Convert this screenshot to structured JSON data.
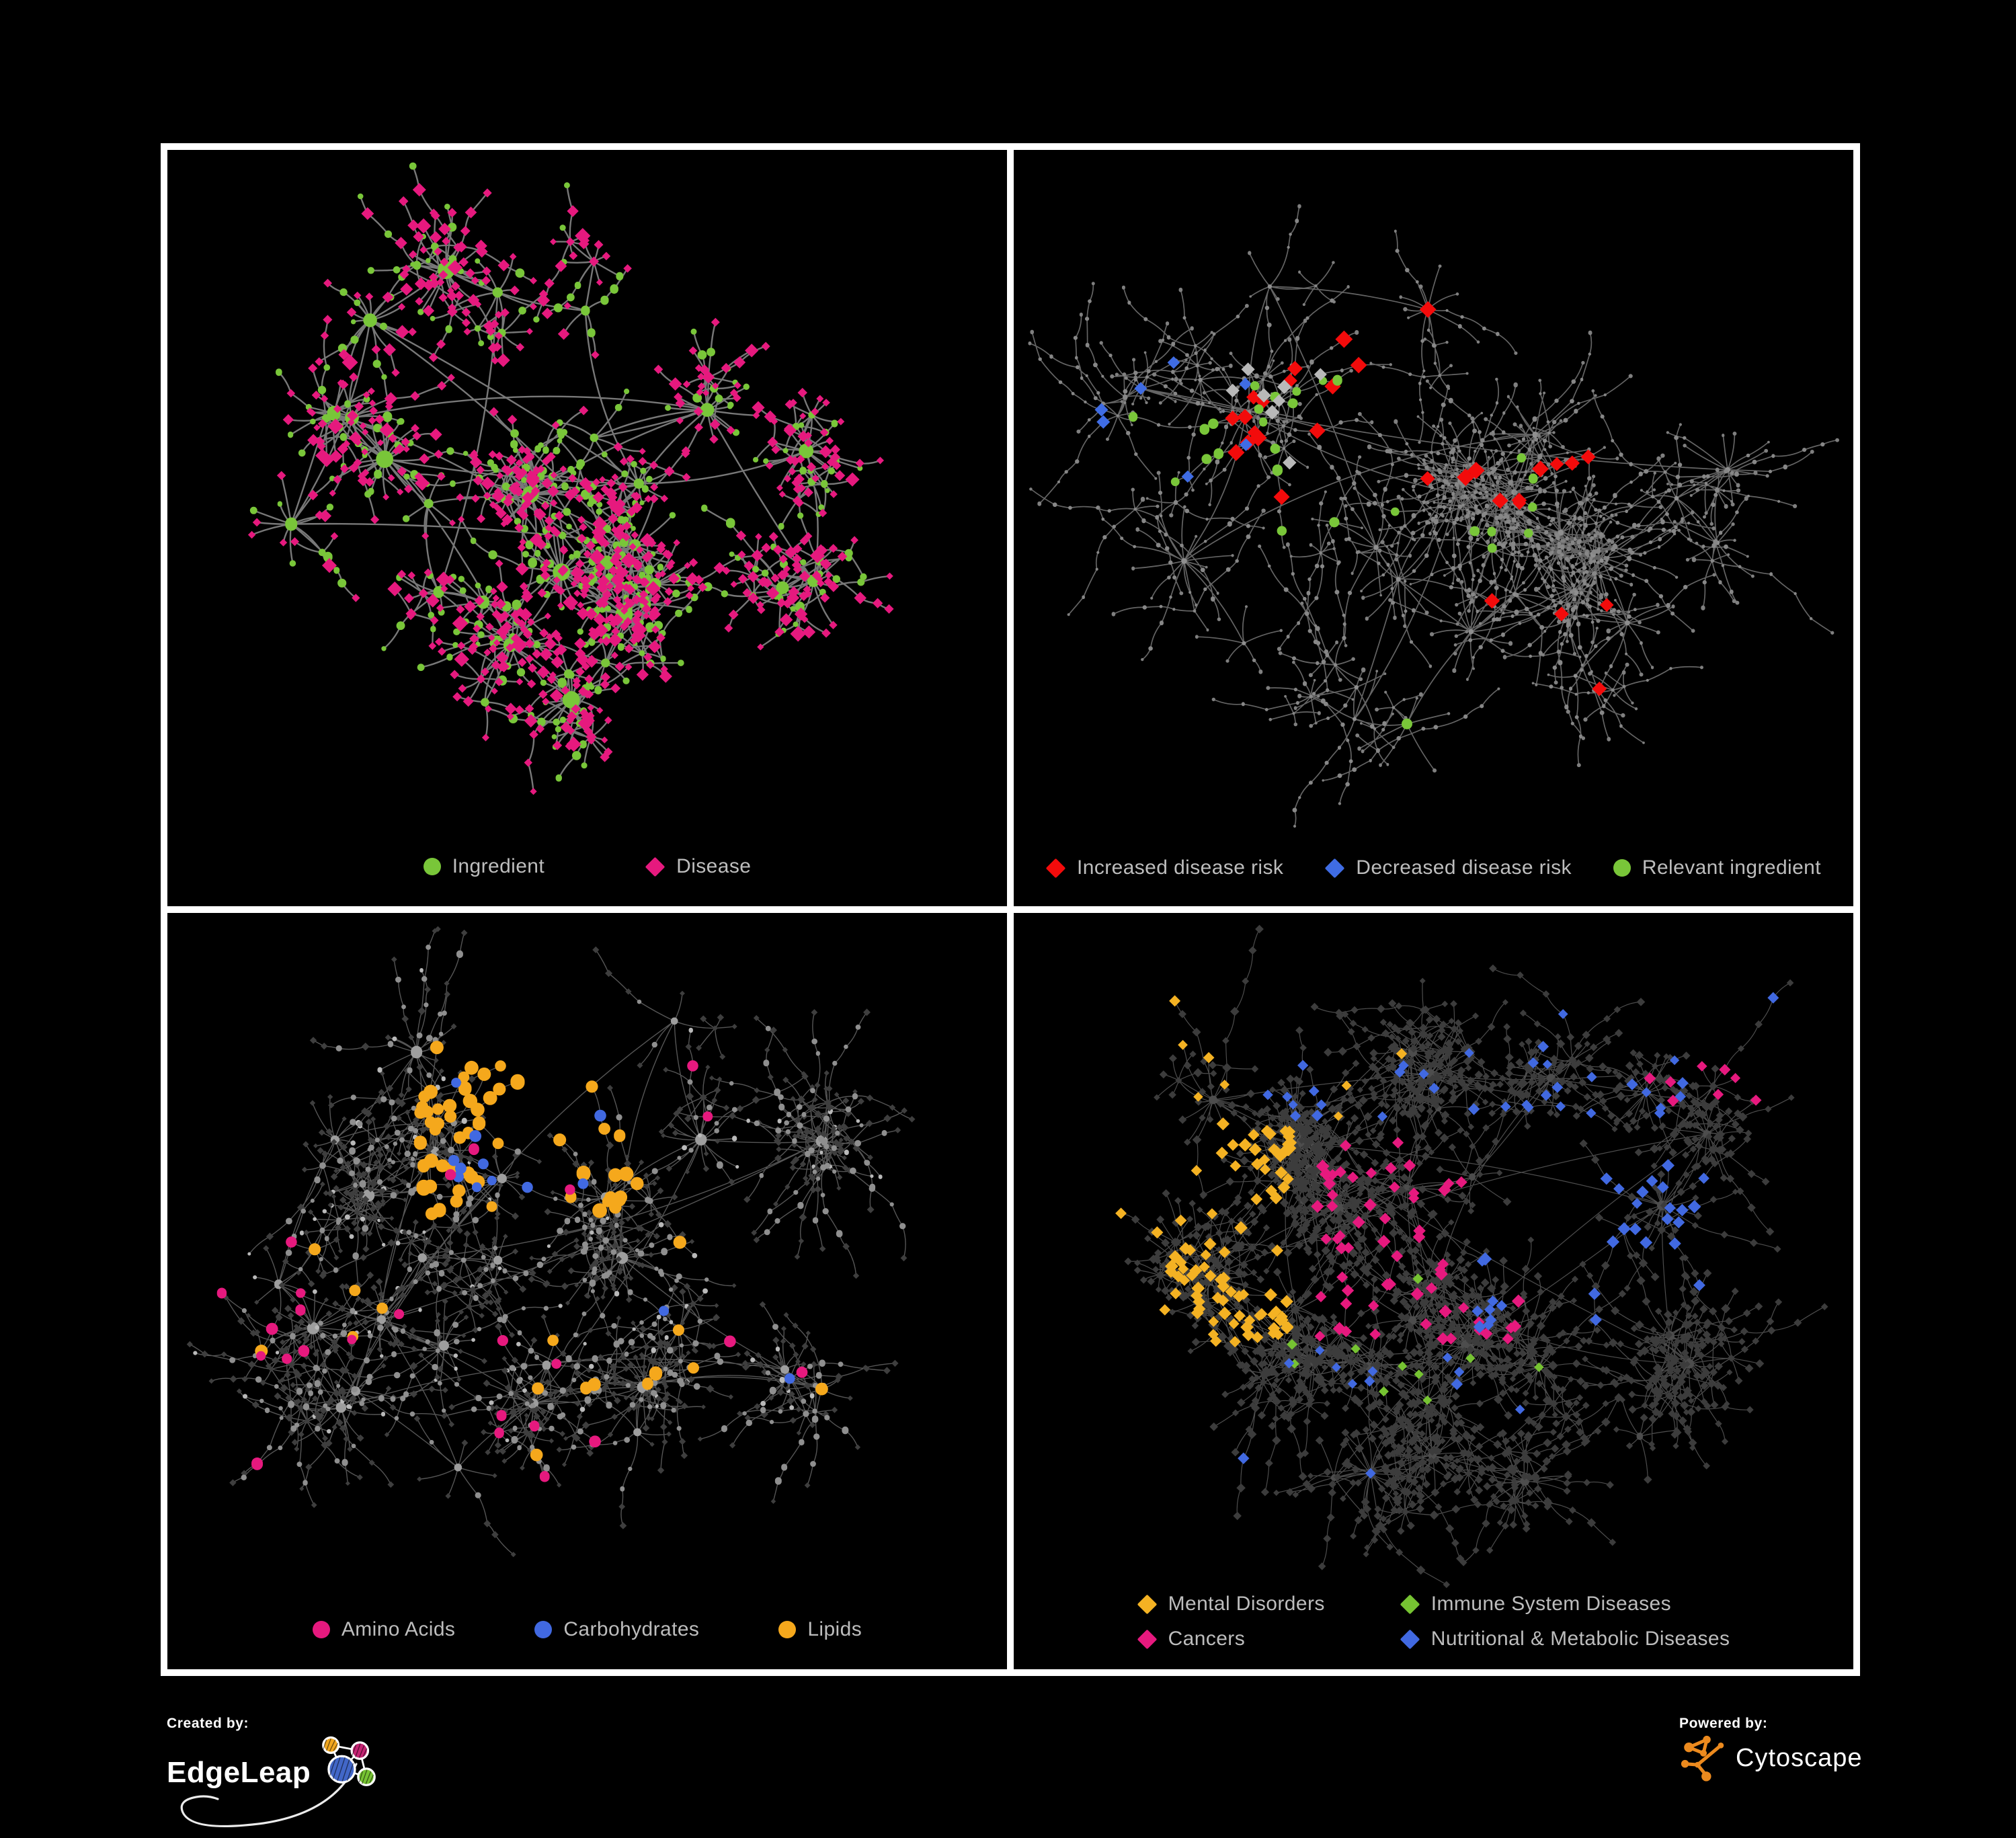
{
  "page": {
    "background": "#000000",
    "frame_color": "#ffffff",
    "legend_text_color": "#bdbdbd"
  },
  "footer": {
    "created_by_label": "Created by:",
    "edgeleap_name": "EdgeLeap",
    "powered_by_label": "Powered by:",
    "cytoscape_name": "Cytoscape",
    "edgeleap_logo_colors": {
      "orange": "#f2a71f",
      "magenta": "#c52373",
      "blue": "#4267c8",
      "green": "#76c332",
      "outline": "#ffffff"
    },
    "cytoscape_logo_color": "#ec8a1e"
  },
  "panels": [
    {
      "id": "ingredient-disease",
      "legend_rows": [
        [
          {
            "label": "Ingredient",
            "shape": "circle",
            "color": "#79c639"
          },
          {
            "label": "Disease",
            "shape": "diamond",
            "color": "#e6197e"
          }
        ]
      ],
      "network": {
        "seed": 7,
        "hubCount": 28,
        "spreadX": 430,
        "spreadY": 350,
        "centerDX": -30,
        "centerDY": -25,
        "hubLinkExtra": 14,
        "subHubProb": 0.13,
        "leaf": {
          "min": 4,
          "var": 21,
          "dist": {
            "min": 20,
            "var": 55
          }
        },
        "chain": {
          "prob": 0.2,
          "maxLen": 3
        },
        "edge": {
          "color": "#8d8d8d",
          "width": 2.4,
          "opacity": 0.85
        },
        "styles": {
          "hub": {
            "shape": "circle",
            "color": "#79c639",
            "rBase": 5,
            "rPerLeaf": 0.33,
            "rMax": 16
          },
          "mid": [
            {
              "shape": "circle",
              "color": "#79c639",
              "smin": 4,
              "svar": 3,
              "prob": 0.55
            },
            {
              "shape": "diamond",
              "color": "#e6197e",
              "smin": 6,
              "svar": 4,
              "prob": 0.45
            }
          ],
          "leaf": [
            {
              "shape": "diamond",
              "color": "#e6197e",
              "smin": 5,
              "svar": 2.5,
              "prob": 0.66
            },
            {
              "shape": "circle",
              "color": "#79c639",
              "smin": 3.5,
              "svar": 2,
              "prob": 0.22
            },
            {
              "shape": "diamond",
              "color": "#e6197e",
              "smin": 8,
              "svar": 4,
              "prob": 0.12
            }
          ]
        },
        "highlights": []
      }
    },
    {
      "id": "disease-risk",
      "legend_rows": [
        [
          {
            "label": "Increased disease risk",
            "shape": "diamond",
            "color": "#f30b0b"
          },
          {
            "label": "Decreased disease risk",
            "shape": "diamond",
            "color": "#3f6ce4"
          },
          {
            "label": "Relevant ingredient",
            "shape": "circle",
            "color": "#79c639"
          }
        ]
      ],
      "network": {
        "seed": 13,
        "hubCount": 30,
        "spreadX": 500,
        "spreadY": 390,
        "centerDX": 0,
        "centerDY": -30,
        "hubLinkExtra": 9,
        "subHubProb": 0.18,
        "leaf": {
          "min": 3,
          "var": 14,
          "dist": {
            "min": 22,
            "var": 60
          }
        },
        "chain": {
          "prob": 0.45,
          "maxLen": 5
        },
        "edge": {
          "color": "#7d7d7d",
          "width": 1.7,
          "opacity": 0.8
        },
        "styles": {
          "hub": {
            "shape": "circle",
            "color": "#8f8f8f",
            "rBase": 2.5,
            "rPerLeaf": 0.12,
            "rMax": 7
          },
          "mid": [
            {
              "shape": "circle",
              "color": "#878787",
              "smin": 2,
              "svar": 1.5,
              "prob": 1
            }
          ],
          "leaf": [
            {
              "shape": "circle",
              "color": "#7f7f7f",
              "smin": 1.8,
              "svar": 1.4,
              "prob": 1
            }
          ]
        },
        "highlights": [
          {
            "shape": "diamond",
            "color": "#f30b0b",
            "size": 10,
            "sizeVar": 3,
            "region": [
              0.25,
              0.18,
              0.72,
              0.52
            ],
            "prob": 0.32,
            "max": 26,
            "types": [
              "hub",
              "mid"
            ]
          },
          {
            "shape": "diamond",
            "color": "#f30b0b",
            "size": 10,
            "sizeVar": 2,
            "region": [
              0.55,
              0.62,
              0.82,
              0.85
            ],
            "prob": 0.2,
            "max": 4,
            "types": [
              "any"
            ]
          },
          {
            "shape": "diamond",
            "color": "#3f6ce4",
            "size": 9,
            "sizeVar": 2,
            "region": [
              0.1,
              0.26,
              0.28,
              0.52
            ],
            "prob": 0.3,
            "max": 7,
            "types": [
              "hub",
              "mid"
            ]
          },
          {
            "shape": "diamond",
            "color": "#3f6ce4",
            "size": 9,
            "sizeVar": 1,
            "region": [
              0.78,
              0.2,
              0.95,
              0.32
            ],
            "prob": 0.6,
            "max": 2,
            "types": [
              "any"
            ]
          },
          {
            "shape": "diamond",
            "color": "#b9b9b9",
            "size": 9,
            "sizeVar": 2,
            "region": [
              0.1,
              0.2,
              0.62,
              0.55
            ],
            "prob": 0.12,
            "max": 8,
            "types": [
              "any"
            ]
          },
          {
            "shape": "circle",
            "color": "#79c639",
            "size": 6,
            "sizeVar": 2,
            "region": [
              0.08,
              0.18,
              0.62,
              0.58
            ],
            "prob": 0.28,
            "max": 26,
            "types": [
              "any"
            ]
          },
          {
            "shape": "circle",
            "color": "#79c639",
            "size": 7,
            "sizeVar": 2,
            "region": [
              0.3,
              0.7,
              0.55,
              0.9
            ],
            "prob": 0.2,
            "max": 3,
            "types": [
              "hub"
            ]
          }
        ]
      }
    },
    {
      "id": "macronutrients",
      "legend_rows": [
        [
          {
            "label": "Amino Acids",
            "shape": "circle",
            "color": "#e6197e"
          },
          {
            "label": "Carbohydrates",
            "shape": "circle",
            "color": "#4169e1"
          },
          {
            "label": "Lipids",
            "shape": "circle",
            "color": "#f5a81c"
          }
        ]
      ],
      "network": {
        "seed": 21,
        "hubCount": 30,
        "spreadX": 470,
        "spreadY": 380,
        "centerDX": -20,
        "centerDY": -15,
        "hubLinkExtra": 16,
        "subHubProb": 0.15,
        "leaf": {
          "min": 4,
          "var": 20,
          "dist": {
            "min": 18,
            "var": 50
          }
        },
        "chain": {
          "prob": 0.3,
          "maxLen": 4
        },
        "edge": {
          "color": "#9a9a9a",
          "width": 1.4,
          "opacity": 0.55
        },
        "styles": {
          "hub": {
            "shape": "circle",
            "color": "#9e9e9e",
            "rBase": 4.5,
            "rPerLeaf": 0.22,
            "rMax": 11
          },
          "mid": [
            {
              "shape": "circle",
              "color": "#8f8f8f",
              "smin": 3,
              "svar": 2,
              "prob": 0.6
            },
            {
              "shape": "diamond",
              "color": "#3e3e3e",
              "smin": 4,
              "svar": 2,
              "prob": 0.4
            }
          ],
          "leaf": [
            {
              "shape": "diamond",
              "color": "#3e3e3e",
              "smin": 3.5,
              "svar": 2,
              "prob": 0.85
            },
            {
              "shape": "circle",
              "color": "#b9b9b9",
              "smin": 2.5,
              "svar": 1.5,
              "prob": 0.15
            }
          ]
        },
        "highlights": [
          {
            "shape": "circle",
            "color": "#f5a81c",
            "size": 8,
            "sizeVar": 3,
            "region": [
              0.3,
              0.16,
              0.56,
              0.44
            ],
            "prob": 0.5,
            "max": 58,
            "types": [
              "any"
            ]
          },
          {
            "shape": "circle",
            "color": "#f5a81c",
            "size": 8,
            "sizeVar": 2,
            "region": [
              0.1,
              0.45,
              0.8,
              0.8
            ],
            "prob": 0.06,
            "max": 16,
            "types": [
              "hub",
              "mid"
            ]
          },
          {
            "shape": "circle",
            "color": "#4169e1",
            "size": 7,
            "sizeVar": 2,
            "region": [
              0.34,
              0.18,
              0.52,
              0.4
            ],
            "prob": 0.22,
            "max": 11,
            "types": [
              "any"
            ]
          },
          {
            "shape": "circle",
            "color": "#4169e1",
            "size": 7,
            "sizeVar": 1,
            "region": [
              0.58,
              0.55,
              0.75,
              0.68
            ],
            "prob": 0.3,
            "max": 2,
            "types": [
              "any"
            ]
          },
          {
            "shape": "circle",
            "color": "#e6197e",
            "size": 7,
            "sizeVar": 2,
            "region": [
              0.03,
              0.05,
              0.95,
              0.95
            ],
            "prob": 0.05,
            "max": 26,
            "types": [
              "hub",
              "mid",
              "leaf"
            ]
          }
        ]
      }
    },
    {
      "id": "disease-classes",
      "legend_rows": [
        [
          {
            "label": "Mental Disorders",
            "shape": "diamond",
            "color": "#f4b223"
          },
          {
            "label": "Immune System Diseases",
            "shape": "diamond",
            "color": "#76c332"
          }
        ],
        [
          {
            "label": "Cancers",
            "shape": "diamond",
            "color": "#e6197e"
          },
          {
            "label": "Nutritional & Metabolic Diseases",
            "shape": "diamond",
            "color": "#4169e1"
          }
        ]
      ],
      "network": {
        "seed": 29,
        "hubCount": 34,
        "spreadX": 500,
        "spreadY": 390,
        "centerDX": 0,
        "centerDY": -20,
        "hubLinkExtra": 18,
        "subHubProb": 0.16,
        "leaf": {
          "min": 4,
          "var": 19,
          "dist": {
            "min": 18,
            "var": 48
          }
        },
        "chain": {
          "prob": 0.32,
          "maxLen": 4
        },
        "edge": {
          "color": "#9a9a9a",
          "width": 1.2,
          "opacity": 0.5
        },
        "styles": {
          "hub": {
            "shape": "circle",
            "color": "#4d4d4d",
            "rBase": 3.5,
            "rPerLeaf": 0.18,
            "rMax": 9
          },
          "mid": [
            {
              "shape": "diamond",
              "color": "#3c3c3c",
              "smin": 5,
              "svar": 2,
              "prob": 1
            }
          ],
          "leaf": [
            {
              "shape": "diamond",
              "color": "#3c3c3c",
              "smin": 4.5,
              "svar": 2,
              "prob": 1
            }
          ]
        },
        "highlights": [
          {
            "shape": "diamond",
            "color": "#f4b223",
            "size": 8,
            "sizeVar": 2,
            "region": [
              0.05,
              0.3,
              0.33,
              0.62
            ],
            "prob": 0.5,
            "max": 95,
            "types": [
              "any"
            ]
          },
          {
            "shape": "diamond",
            "color": "#f4b223",
            "size": 7,
            "sizeVar": 2,
            "region": [
              0.1,
              0.05,
              0.5,
              0.3
            ],
            "prob": 0.05,
            "max": 8,
            "types": [
              "any"
            ]
          },
          {
            "shape": "diamond",
            "color": "#e6197e",
            "size": 8,
            "sizeVar": 2,
            "region": [
              0.36,
              0.33,
              0.63,
              0.62
            ],
            "prob": 0.35,
            "max": 60,
            "types": [
              "any"
            ]
          },
          {
            "shape": "diamond",
            "color": "#e6197e",
            "size": 7,
            "sizeVar": 2,
            "region": [
              0.75,
              0.12,
              0.95,
              0.28
            ],
            "prob": 0.3,
            "max": 8,
            "types": [
              "any"
            ]
          },
          {
            "shape": "diamond",
            "color": "#4169e1",
            "size": 8,
            "sizeVar": 2,
            "region": [
              0.55,
              0.35,
              0.85,
              0.6
            ],
            "prob": 0.25,
            "max": 30,
            "types": [
              "any"
            ]
          },
          {
            "shape": "diamond",
            "color": "#4169e1",
            "size": 7,
            "sizeVar": 2,
            "region": [
              0.3,
              0.03,
              0.95,
              0.3
            ],
            "prob": 0.12,
            "max": 35,
            "types": [
              "any"
            ]
          },
          {
            "shape": "diamond",
            "color": "#4169e1",
            "size": 7,
            "sizeVar": 2,
            "region": [
              0.15,
              0.62,
              0.75,
              0.9
            ],
            "prob": 0.06,
            "max": 12,
            "types": [
              "any"
            ]
          },
          {
            "shape": "diamond",
            "color": "#76c332",
            "size": 7,
            "sizeVar": 1,
            "region": [
              0.25,
              0.2,
              0.7,
              0.75
            ],
            "prob": 0.04,
            "max": 10,
            "types": [
              "any"
            ]
          }
        ]
      }
    }
  ]
}
